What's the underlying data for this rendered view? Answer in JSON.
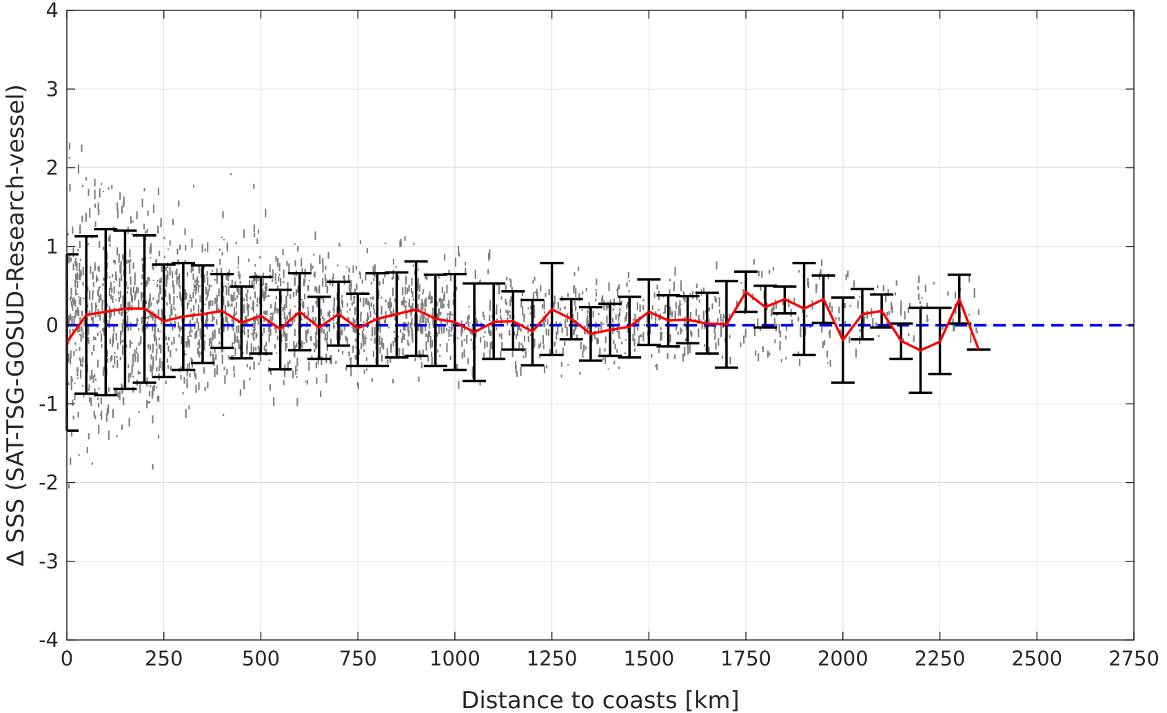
{
  "chart_data": {
    "type": "scatter",
    "title": "",
    "xlabel": "Distance to coasts [km]",
    "ylabel": "∆ SSS (SAT-TSG-GOSUD-Research-vessel)",
    "xlim": [
      0,
      2750
    ],
    "ylim": [
      -4,
      4
    ],
    "xticks": [
      0,
      250,
      500,
      750,
      1000,
      1250,
      1500,
      1750,
      2000,
      2250,
      2500,
      2750
    ],
    "yticks": [
      -4,
      -3,
      -2,
      -1,
      0,
      1,
      2,
      3,
      4
    ],
    "xtick_labels": [
      "0",
      "250",
      "500",
      "750",
      "1000",
      "1250",
      "1500",
      "1750",
      "2000",
      "2250",
      "2500",
      "2750"
    ],
    "ytick_labels": [
      "-4",
      "-3",
      "-2",
      "-1",
      "0",
      "1",
      "2",
      "3",
      "4"
    ],
    "grid": true,
    "legend": "none",
    "reference_line": {
      "y": 0,
      "color": "#0000ff",
      "style": "dashed"
    },
    "colors": {
      "scatter": "#808080",
      "mean_line": "#ff0000",
      "error_bars": "#000000",
      "axes": "#262626",
      "grid": "#dcdcdc"
    },
    "binned_stats": {
      "x": [
        0,
        50,
        100,
        150,
        200,
        250,
        300,
        350,
        400,
        450,
        500,
        550,
        600,
        650,
        700,
        750,
        800,
        850,
        900,
        950,
        1000,
        1050,
        1100,
        1150,
        1200,
        1250,
        1300,
        1350,
        1400,
        1450,
        1500,
        1550,
        1600,
        1650,
        1700,
        1750,
        1800,
        1850,
        1900,
        1950,
        2000,
        2050,
        2100,
        2150,
        2200,
        2250,
        2300,
        2350
      ],
      "mean": [
        -0.22,
        0.13,
        0.17,
        0.21,
        0.21,
        0.05,
        0.11,
        0.14,
        0.18,
        0.03,
        0.12,
        -0.05,
        0.17,
        -0.03,
        0.14,
        -0.04,
        0.08,
        0.14,
        0.2,
        0.08,
        0.04,
        -0.09,
        0.04,
        0.05,
        -0.08,
        0.2,
        0.08,
        -0.11,
        -0.06,
        -0.02,
        0.17,
        0.06,
        0.07,
        0.02,
        0.01,
        0.42,
        0.23,
        0.33,
        0.21,
        0.33,
        -0.19,
        0.14,
        0.18,
        -0.2,
        -0.32,
        -0.21,
        0.33,
        -0.31
      ],
      "upper": [
        0.9,
        1.13,
        1.22,
        1.2,
        1.14,
        0.77,
        0.79,
        0.76,
        0.65,
        0.49,
        0.61,
        0.45,
        0.66,
        0.36,
        0.55,
        0.4,
        0.66,
        0.67,
        0.81,
        0.64,
        0.65,
        0.53,
        0.53,
        0.43,
        0.32,
        0.79,
        0.33,
        0.23,
        0.27,
        0.36,
        0.58,
        0.38,
        0.37,
        0.41,
        0.56,
        0.68,
        0.5,
        0.49,
        0.79,
        0.63,
        0.35,
        0.46,
        0.39,
        0.02,
        0.22,
        0.22,
        0.64,
        -0.31
      ],
      "lower": [
        -1.34,
        -0.87,
        -0.89,
        -0.81,
        -0.73,
        -0.66,
        -0.57,
        -0.48,
        -0.29,
        -0.42,
        -0.36,
        -0.56,
        -0.32,
        -0.43,
        -0.26,
        -0.52,
        -0.52,
        -0.41,
        -0.39,
        -0.52,
        -0.57,
        -0.71,
        -0.43,
        -0.31,
        -0.51,
        -0.38,
        -0.18,
        -0.45,
        -0.39,
        -0.41,
        -0.25,
        -0.27,
        -0.23,
        -0.36,
        -0.54,
        0.17,
        -0.03,
        0.15,
        -0.38,
        0.03,
        -0.73,
        -0.18,
        -0.03,
        -0.43,
        -0.86,
        -0.62,
        0.02,
        -0.31
      ]
    },
    "scatter_clusters": [
      {
        "x_range": [
          0,
          250
        ],
        "y_center": 0.1,
        "y_spread": 0.9,
        "density": 1.0
      },
      {
        "x_range": [
          250,
          500
        ],
        "y_center": 0.15,
        "y_spread": 0.55,
        "density": 0.8
      },
      {
        "x_range": [
          500,
          1000
        ],
        "y_center": 0.1,
        "y_spread": 0.45,
        "density": 0.6
      },
      {
        "x_range": [
          1000,
          1700
        ],
        "y_center": 0.03,
        "y_spread": 0.35,
        "density": 0.3
      },
      {
        "x_range": [
          1700,
          2350
        ],
        "y_center": 0.15,
        "y_spread": 0.35,
        "density": 0.12
      }
    ]
  }
}
